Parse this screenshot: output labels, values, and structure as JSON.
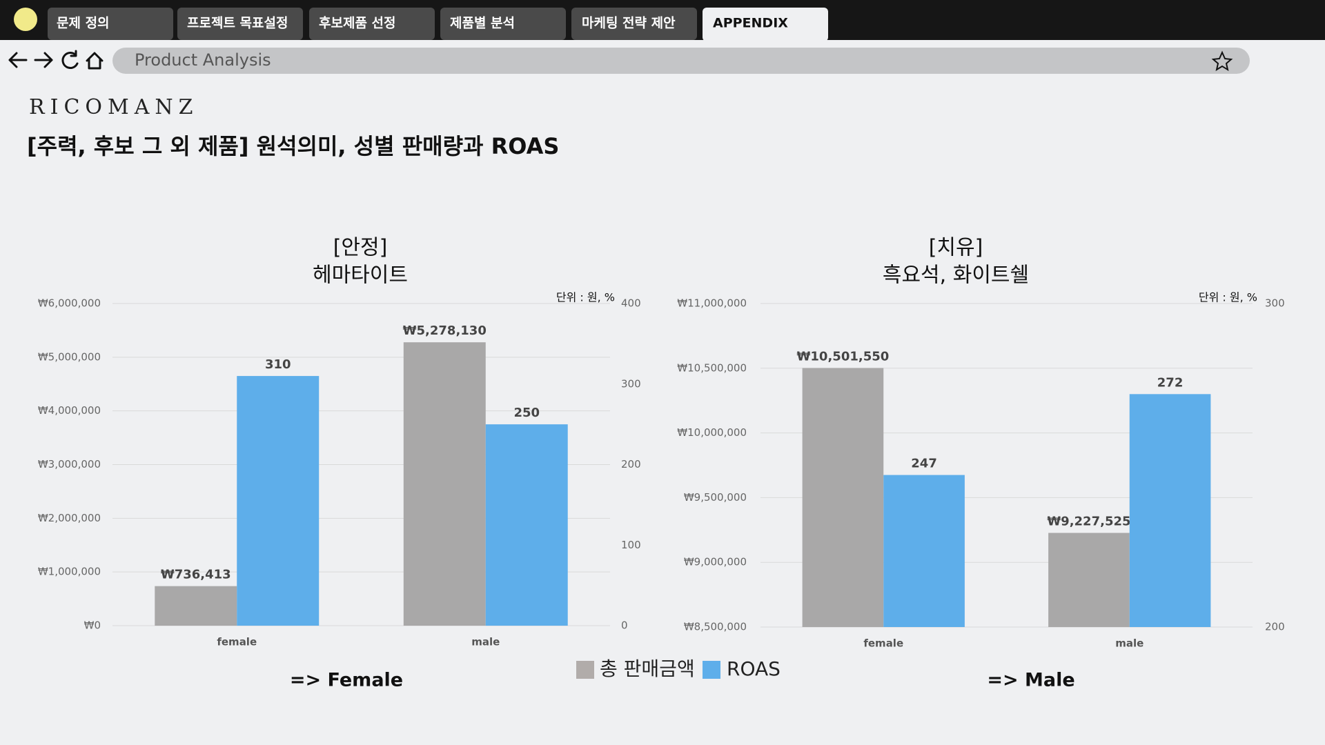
{
  "tabs": [
    "문제 정의",
    "프로젝트 목표설정",
    "후보제품 선정",
    "제품별 분석",
    "마케팅 전략 제안",
    "APPENDIX"
  ],
  "address": "Product Analysis",
  "logo": "RICOMANZ",
  "title": "[주력, 후보 그 외 제품] 원석의미, 성별 판매량과 ROAS",
  "chart_data": [
    {
      "type": "bar",
      "title": "[안정]",
      "subtitle": "헤마타이트",
      "unit_note": "단위 : 원, %",
      "categories": [
        "female",
        "male"
      ],
      "series": [
        {
          "name": "총 판매금액",
          "color": "#a9a8a8",
          "values": [
            736413,
            5278130
          ],
          "value_labels": [
            "₩736,413",
            "₩5,278,130"
          ]
        },
        {
          "name": "ROAS",
          "color": "#5eaeea",
          "axis": "y2",
          "values": [
            310,
            250
          ]
        }
      ],
      "ylim": [
        0,
        6000000
      ],
      "yticks": [
        {
          "value": 0,
          "label": "₩0"
        },
        {
          "value": 1000000,
          "label": "₩1,000,000"
        },
        {
          "value": 2000000,
          "label": "₩2,000,000"
        },
        {
          "value": 3000000,
          "label": "₩3,000,000"
        },
        {
          "value": 4000000,
          "label": "₩4,000,000"
        },
        {
          "value": 5000000,
          "label": "₩5,000,000"
        },
        {
          "value": 6000000,
          "label": "₩6,000,000"
        }
      ],
      "y2lim": [
        0,
        400
      ],
      "y2ticks": [
        0,
        100,
        200,
        300,
        400
      ],
      "grid": true,
      "conclusion": "=> Female"
    },
    {
      "type": "bar",
      "title": "[치유]",
      "subtitle": "흑요석, 화이트쉘",
      "unit_note": "단위 : 원, %",
      "categories": [
        "female",
        "male"
      ],
      "series": [
        {
          "color": "#a9a8a8",
          "values": [
            10501550,
            9227525
          ],
          "value_labels": [
            "₩10,501,550",
            "₩9,227,525"
          ]
        },
        {
          "color": "#5eaeea",
          "axis": "y2",
          "values": [
            247,
            272
          ]
        }
      ],
      "ylim": [
        8500000,
        11000000
      ],
      "yticks": [
        {
          "value": 8500000,
          "label": "₩8,500,000"
        },
        {
          "value": 9000000,
          "label": "₩9,000,000"
        },
        {
          "value": 9500000,
          "label": "₩9,500,000"
        },
        {
          "value": 10000000,
          "label": "₩10,000,000"
        },
        {
          "value": 10500000,
          "label": "₩10,500,000"
        },
        {
          "value": 11000000,
          "label": "₩11,000,000"
        }
      ],
      "y2lim": [
        200,
        300
      ],
      "y2ticks": [
        200,
        300
      ],
      "grid": true,
      "conclusion": "=> Male"
    }
  ]
}
